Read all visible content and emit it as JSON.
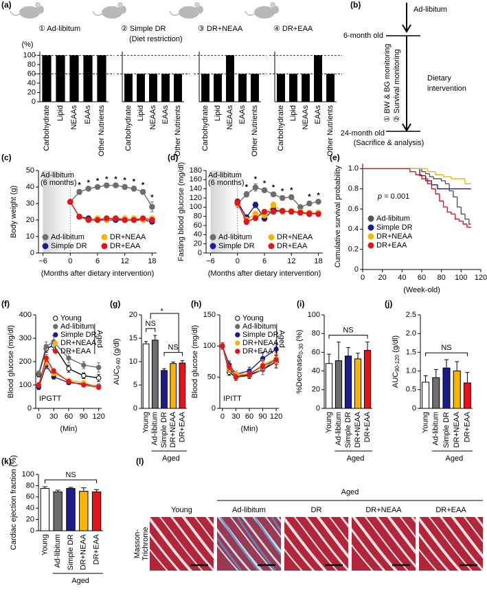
{
  "chart_data": [
    {
      "type": "bar",
      "panel": "(a)",
      "title": "① Ad-libitum",
      "title_color": "#8a8a8a",
      "ylabel": "(%)",
      "ylabel_orientation": "horizontal",
      "categories": [
        "Carbohydrate",
        "Lipid",
        "NEAAs",
        "EAAs",
        "Other Nutrients"
      ],
      "values": [
        100,
        100,
        100,
        100,
        100
      ],
      "color": "#000000",
      "ylim": [
        0,
        108
      ],
      "yticks": [
        0,
        20,
        40,
        60,
        80,
        100
      ],
      "ref_lines": [
        100,
        60
      ]
    },
    {
      "type": "bar",
      "title": "② Simple DR",
      "subtitle": "(Diet restriction)",
      "title_color": "#1c1c8f",
      "categories": [
        "Carbohydrate",
        "Lipid",
        "NEAAs",
        "EAAs",
        "Other Nutrients"
      ],
      "values": [
        60,
        60,
        60,
        60,
        60
      ],
      "color": "#000000",
      "ylim": [
        0,
        108
      ],
      "ref_lines": [
        100,
        60
      ]
    },
    {
      "type": "bar",
      "title": "③ DR+NEAA",
      "title_color": "#f0b400",
      "categories": [
        "Carbohydrate",
        "Lipid",
        "NEAAs",
        "EAAs",
        "Other Nutrients"
      ],
      "values": [
        60,
        60,
        100,
        60,
        60
      ],
      "color": "#000000",
      "ylim": [
        0,
        108
      ],
      "ref_lines": [
        100,
        60
      ]
    },
    {
      "type": "bar",
      "title": "④ DR+EAA",
      "title_color": "#e5141b",
      "categories": [
        "Carbohydrate",
        "Lipid",
        "NEAAs",
        "EAAs",
        "Other Nutrients"
      ],
      "values": [
        60,
        60,
        60,
        100,
        60
      ],
      "color": "#000000",
      "ylim": [
        0,
        108
      ],
      "ref_lines": [
        100,
        60
      ]
    },
    {
      "type": "line",
      "panel": "(c)",
      "ylabel": "Body weight (g)",
      "xlabel": "(Months after dietary intervention)",
      "shade": [
        -6,
        0
      ],
      "shade_label": [
        "Ad-libitum",
        "(6 months)"
      ],
      "x": [
        0,
        2,
        4,
        6,
        8,
        10,
        12,
        14,
        16,
        18
      ],
      "series": [
        {
          "name": "Ad-libitum",
          "color": "#6d6d6d",
          "values": [
            31,
            37,
            39,
            40,
            41,
            41,
            40,
            39,
            37,
            28
          ],
          "errors": [
            1.5,
            1.5,
            1,
            1,
            1,
            1,
            1.5,
            1.5,
            1.5,
            3
          ]
        },
        {
          "name": "Simple DR",
          "color": "#1c1c8f",
          "values": [
            31,
            22,
            21,
            20,
            20,
            20,
            20,
            20,
            20,
            19
          ],
          "errors": [
            1,
            1,
            1,
            1,
            1,
            1,
            1,
            1,
            1,
            1
          ]
        },
        {
          "name": "DR+NEAA",
          "color": "#f7b500",
          "values": [
            31,
            22,
            20,
            21,
            20,
            21,
            21,
            21,
            20,
            21
          ],
          "errors": [
            1,
            1,
            1,
            1,
            1,
            1,
            1,
            1,
            1,
            1
          ]
        },
        {
          "name": "DR+EAA",
          "color": "#e5141b",
          "values": [
            31,
            22,
            20,
            20,
            21,
            21,
            20,
            20,
            21,
            20
          ],
          "errors": [
            1,
            1,
            1,
            1,
            1,
            1,
            1,
            1,
            1,
            1
          ]
        }
      ],
      "stars": {
        "label": "*",
        "x": [
          2,
          4,
          6,
          8,
          10,
          12,
          14,
          16,
          18
        ]
      },
      "xlim": [
        -7,
        19
      ],
      "xticks": [
        {
          "value": -6,
          "label": "−6"
        },
        0,
        6,
        12,
        18
      ],
      "ylim": [
        0,
        50
      ],
      "yticks": [
        0,
        10,
        20,
        30,
        40,
        50
      ],
      "legend": "lower center",
      "legend_columns": 2
    },
    {
      "type": "line",
      "panel": "(d)",
      "ylabel": "Fasting blood glucose (mg/dl)",
      "xlabel": "(Months after dietary intervention)",
      "shade": [
        -6,
        0
      ],
      "shade_label": [
        "Ad-libitum",
        "(6 months)"
      ],
      "x": [
        0,
        2,
        4,
        6,
        8,
        10,
        12,
        14,
        16,
        18
      ],
      "series": [
        {
          "name": "Ad-libitum",
          "color": "#6d6d6d",
          "values": [
            107,
            128,
            143,
            137,
            128,
            120,
            122,
            100,
            108,
            112
          ],
          "errors": [
            8,
            6,
            8,
            5,
            5,
            5,
            5,
            5,
            5,
            4
          ]
        },
        {
          "name": "Simple DR",
          "color": "#1c1c8f",
          "values": [
            112,
            78,
            105,
            75,
            95,
            90,
            92,
            88,
            85,
            88
          ],
          "errors": [
            6,
            5,
            6,
            5,
            5,
            5,
            5,
            4,
            4,
            4
          ]
        },
        {
          "name": "DR+NEAA",
          "color": "#f7b500",
          "values": [
            108,
            72,
            86,
            82,
            105,
            90,
            92,
            90,
            88,
            88
          ],
          "errors": [
            6,
            6,
            5,
            5,
            6,
            5,
            5,
            5,
            5,
            5
          ]
        },
        {
          "name": "DR+EAA",
          "color": "#e5141b",
          "values": [
            110,
            68,
            76,
            90,
            90,
            92,
            90,
            88,
            86,
            85
          ],
          "errors": [
            6,
            6,
            5,
            5,
            5,
            5,
            5,
            5,
            5,
            5
          ]
        }
      ],
      "stars": {
        "label": "*",
        "x": [
          2,
          4,
          6,
          8,
          10,
          12,
          16,
          18
        ]
      },
      "xlim": [
        -7,
        19
      ],
      "xticks": [
        {
          "value": -6,
          "label": "−6"
        },
        0,
        6,
        12,
        18
      ],
      "ylim": [
        0,
        180
      ],
      "yticks": [
        0,
        20,
        40,
        60,
        80,
        100,
        120,
        140,
        160,
        180
      ],
      "legend": "lower center",
      "legend_columns": 2
    },
    {
      "type": "step",
      "panel": "(e)",
      "ylabel": "Cumulative survival probability",
      "xlabel": "(Week-old)",
      "annotation": [
        "p",
        " = 0.001"
      ],
      "series": [
        {
          "name": "Ad-libitum",
          "color": "#555555",
          "x": [
            0,
            60,
            64,
            68,
            72,
            80,
            84,
            88,
            92,
            96,
            100,
            104,
            108,
            110
          ],
          "values": [
            1,
            0.97,
            0.95,
            0.92,
            0.9,
            0.88,
            0.85,
            0.78,
            0.72,
            0.62,
            0.55,
            0.5,
            0.45,
            0.45
          ]
        },
        {
          "name": "Simple DR",
          "color": "#1c1c8f",
          "x": [
            0,
            58,
            64,
            70,
            76,
            110
          ],
          "values": [
            1,
            0.93,
            0.88,
            0.84,
            0.8,
            0.8
          ]
        },
        {
          "name": "DR+NEAA",
          "color": "#f7b500",
          "x": [
            0,
            66,
            74,
            82,
            90,
            104,
            110
          ],
          "values": [
            1,
            0.97,
            0.94,
            0.92,
            0.9,
            0.85,
            0.85
          ]
        },
        {
          "name": "DR+EAA",
          "color": "#e5141b",
          "x": [
            0,
            48,
            54,
            60,
            66,
            70,
            74,
            78,
            82,
            86,
            90,
            94,
            98,
            102,
            106,
            110
          ],
          "values": [
            1,
            0.97,
            0.94,
            0.9,
            0.85,
            0.8,
            0.75,
            0.68,
            0.62,
            0.57,
            0.55,
            0.5,
            0.48,
            0.45,
            0.42,
            0.42
          ]
        }
      ],
      "xlim": [
        0,
        120
      ],
      "xticks": [
        0,
        20,
        40,
        60,
        80,
        100,
        120
      ],
      "ylim": [
        0,
        1.05
      ],
      "yticks": [
        0,
        0.2,
        0.4,
        0.6,
        0.8,
        {
          "value": 1,
          "label": "1.0"
        }
      ],
      "legend": "center left"
    },
    {
      "type": "line",
      "panel": "(f)",
      "ylabel": "Blood glucose (mg/dl)",
      "xlabel": "(Min)",
      "annotation": "IPGTT",
      "x": [
        0,
        15,
        30,
        60,
        90,
        120
      ],
      "series": [
        {
          "name": "Young",
          "color": "#ffffff",
          "edge": "#000000",
          "values": [
            145,
            255,
            270,
            170,
            140,
            130
          ],
          "errors": [
            10,
            15,
            20,
            15,
            12,
            15
          ]
        },
        {
          "name": "Ad-libitum",
          "color": "#6d6d6d",
          "values": [
            150,
            265,
            285,
            215,
            185,
            175
          ],
          "errors": [
            10,
            20,
            25,
            20,
            15,
            20
          ]
        },
        {
          "name": "Simple DR",
          "color": "#1c1c8f",
          "values": [
            90,
            185,
            135,
            110,
            105,
            95
          ],
          "errors": [
            10,
            15,
            10,
            8,
            8,
            8
          ]
        },
        {
          "name": "DR+NEAA",
          "color": "#f7b500",
          "values": [
            100,
            200,
            150,
            120,
            110,
            92
          ],
          "errors": [
            10,
            15,
            10,
            8,
            8,
            8
          ]
        },
        {
          "name": "DR+EAA",
          "color": "#e5141b",
          "values": [
            100,
            215,
            160,
            115,
            100,
            90
          ],
          "errors": [
            10,
            15,
            10,
            8,
            8,
            8
          ]
        }
      ],
      "xlim": [
        -6,
        126
      ],
      "xticks": [
        0,
        30,
        60,
        90,
        120
      ],
      "ylim": [
        0,
        400
      ],
      "yticks": [
        0,
        100,
        200,
        300,
        400
      ],
      "legend": "upper right",
      "legend_group": "Aged"
    },
    {
      "type": "bar",
      "panel": "(g)",
      "ylabel": [
        "AUC",
        "0-60",
        " (g/dl)"
      ],
      "categories": [
        "Young",
        "Ad-libitum",
        "Simple DR",
        "DR+NEAA",
        "DR+EAA"
      ],
      "values": [
        13.8,
        14.6,
        8.1,
        9.6,
        9.7
      ],
      "errors": [
        0.5,
        1.0,
        0.4,
        0.3,
        0.5
      ],
      "colors": [
        "#ffffff",
        "#6d6d6d",
        "#1c1c8f",
        "#f7b500",
        "#e5141b"
      ],
      "edge": "#000000",
      "ylim": [
        0,
        20
      ],
      "yticks": [
        0,
        5,
        10,
        15,
        20
      ],
      "group_label": "Aged",
      "brackets": [
        {
          "label": "NS"
        },
        {
          "label": "*"
        },
        {
          "label": "NS"
        }
      ]
    },
    {
      "type": "line",
      "panel": "(h)",
      "ylabel": "Blood glucose (mg/dl)",
      "xlabel": "(Min)",
      "annotation": "IPITT",
      "x": [
        0,
        15,
        30,
        60,
        90,
        120
      ],
      "series": [
        {
          "name": "Young",
          "color": "#ffffff",
          "edge": "#000000",
          "values": [
            100,
            58,
            50,
            53,
            62,
            75
          ],
          "errors": [
            5,
            5,
            5,
            5,
            8,
            10
          ]
        },
        {
          "name": "Ad-libitum",
          "color": "#6d6d6d",
          "values": [
            100,
            63,
            52,
            55,
            62,
            80
          ],
          "errors": [
            5,
            5,
            5,
            5,
            8,
            10
          ]
        },
        {
          "name": "Simple DR",
          "color": "#1c1c8f",
          "values": [
            100,
            70,
            55,
            60,
            80,
            95
          ],
          "errors": [
            5,
            6,
            5,
            6,
            10,
            10
          ]
        },
        {
          "name": "DR+NEAA",
          "color": "#f7b500",
          "values": [
            100,
            64,
            55,
            55,
            70,
            80
          ],
          "errors": [
            5,
            5,
            5,
            5,
            8,
            8
          ]
        },
        {
          "name": "DR+EAA",
          "color": "#e5141b",
          "values": [
            100,
            67,
            50,
            55,
            68,
            78
          ],
          "errors": [
            5,
            5,
            5,
            5,
            8,
            8
          ]
        }
      ],
      "xlim": [
        -6,
        126
      ],
      "xticks": [
        0,
        30,
        60,
        90,
        120
      ],
      "ylim": [
        0,
        150
      ],
      "yticks": [
        0,
        50,
        100,
        150
      ],
      "legend": "upper right",
      "legend_group": "Aged"
    },
    {
      "type": "bar",
      "panel": "(i)",
      "ylabel": [
        "%Decrease",
        "0-30",
        " (%)"
      ],
      "categories": [
        "Young",
        "Ad-libitum",
        "Simple DR",
        "DR+NEAA",
        "DR+EAA"
      ],
      "values": [
        48,
        51,
        56,
        53,
        62
      ],
      "errors": [
        10,
        20,
        9,
        6,
        9
      ],
      "colors": [
        "#ffffff",
        "#6d6d6d",
        "#1c1c8f",
        "#f7b500",
        "#e5141b"
      ],
      "edge": "#000000",
      "ylim": [
        0,
        100
      ],
      "yticks": [
        0,
        20,
        40,
        60,
        80,
        100
      ],
      "group_label": "Aged",
      "brackets": [
        {
          "label": "NS"
        }
      ]
    },
    {
      "type": "bar",
      "panel": "(j)",
      "ylabel": [
        "AUC",
        "90-120",
        " (g/dl)"
      ],
      "categories": [
        "Young",
        "Ad-libitum",
        "Simple DR",
        "DR+NEAA",
        "DR+EAA"
      ],
      "values": [
        0.7,
        0.82,
        1.08,
        1.0,
        0.68
      ],
      "errors": [
        0.17,
        0.22,
        0.22,
        0.25,
        0.28
      ],
      "colors": [
        "#ffffff",
        "#6d6d6d",
        "#1c1c8f",
        "#f7b500",
        "#e5141b"
      ],
      "edge": "#000000",
      "ylim": [
        0,
        2.5
      ],
      "yticks": [
        0,
        0.5,
        {
          "value": 1,
          "label": "1.0"
        },
        1.5,
        {
          "value": 2,
          "label": "2.0"
        },
        2.5
      ],
      "group_label": "Aged",
      "brackets": [
        {
          "label": "NS"
        }
      ]
    },
    {
      "type": "bar",
      "panel": "(k)",
      "ylabel": "Cardiac ejection fraction (%)",
      "categories": [
        "Young",
        "Ad-libitum",
        "Simple DR",
        "DR+NEAA",
        "DR+EAA"
      ],
      "values": [
        75,
        69,
        75,
        70,
        69
      ],
      "errors": [
        3,
        3,
        2,
        6,
        4
      ],
      "colors": [
        "#ffffff",
        "#6d6d6d",
        "#1c1c8f",
        "#f7b500",
        "#e5141b"
      ],
      "edge": "#000000",
      "ylim": [
        0,
        100
      ],
      "yticks": [
        0,
        20,
        40,
        60,
        80,
        100
      ],
      "group_label": "Aged",
      "brackets": [
        {
          "label": "NS"
        }
      ]
    }
  ],
  "timeline": {
    "panel": "(b)",
    "start": "Ad-libitum",
    "t1": "6-month old",
    "intervention": [
      "Dietary",
      "intervention"
    ],
    "monitoring": [
      "① BW & BG monitoring",
      "② Survival monitoring"
    ],
    "t2": "24-month old",
    "end": "(Sacrifice & analysis)"
  },
  "histology": {
    "panel": "(l)",
    "group": "Aged",
    "stain": [
      "Masson-",
      "Trichrome"
    ],
    "labels": [
      "Young",
      "Ad-libitum",
      "DR",
      "DR+NEAA",
      "DR+EAA"
    ]
  }
}
